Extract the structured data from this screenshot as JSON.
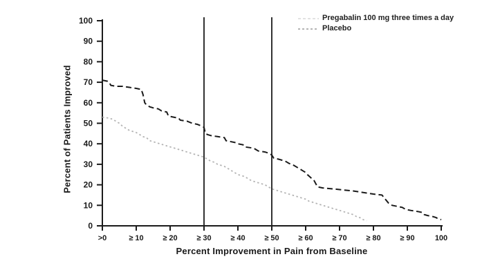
{
  "chart_data": {
    "type": "line",
    "xlabel": "Percent Improvement in Pain from Baseline",
    "ylabel": "Percent of Patients Improved",
    "xlim": [
      0,
      100
    ],
    "ylim": [
      0,
      100
    ],
    "grid": false,
    "legend_position": "top-right",
    "axis_color": "#1a1a1a",
    "text_color": "#1a1a1a",
    "legend_marker_colors": [
      "#e2e2e2",
      "#b3b3b3"
    ],
    "reference_lines_x": [
      30,
      50
    ],
    "y_ticks": [
      0,
      10,
      20,
      30,
      40,
      50,
      60,
      70,
      80,
      90,
      100
    ],
    "x_ticks": [
      {
        "value": 0,
        "label": ">0"
      },
      {
        "value": 10,
        "label": "≥ 10"
      },
      {
        "value": 20,
        "label": "≥ 20"
      },
      {
        "value": 30,
        "label": "≥ 30"
      },
      {
        "value": 40,
        "label": "≥ 40"
      },
      {
        "value": 50,
        "label": "≥ 50"
      },
      {
        "value": 60,
        "label": "≥ 60"
      },
      {
        "value": 70,
        "label": "≥ 70"
      },
      {
        "value": 80,
        "label": "≥ 80"
      },
      {
        "value": 90,
        "label": "≥ 90"
      },
      {
        "value": 100,
        "label": "100"
      }
    ],
    "series": [
      {
        "name": "Pregabalin 100 mg three times a day",
        "style": "dashed",
        "color": "#1a1a1a",
        "points": [
          [
            0,
            71
          ],
          [
            1.5,
            70.5
          ],
          [
            2,
            70
          ],
          [
            2.5,
            68.5
          ],
          [
            4,
            68
          ],
          [
            6,
            68
          ],
          [
            8,
            67.5
          ],
          [
            10,
            67
          ],
          [
            11.5,
            66.5
          ],
          [
            12,
            64
          ],
          [
            12.5,
            60
          ],
          [
            13,
            59
          ],
          [
            14,
            58
          ],
          [
            15,
            57.5
          ],
          [
            16.5,
            57
          ],
          [
            17.5,
            56
          ],
          [
            19,
            55.5
          ],
          [
            19.5,
            53.5
          ],
          [
            21,
            53
          ],
          [
            22.5,
            52.5
          ],
          [
            23,
            51.5
          ],
          [
            25,
            51
          ],
          [
            26.5,
            50
          ],
          [
            28,
            49.5
          ],
          [
            29.5,
            48.5
          ],
          [
            30,
            48
          ],
          [
            30.4,
            45
          ],
          [
            31,
            44.5
          ],
          [
            32,
            44
          ],
          [
            34,
            43.5
          ],
          [
            36,
            43
          ],
          [
            36.5,
            41.5
          ],
          [
            38,
            41
          ],
          [
            39.5,
            40.5
          ],
          [
            40,
            40
          ],
          [
            41.5,
            39.5
          ],
          [
            42,
            38.5
          ],
          [
            44,
            38
          ],
          [
            45,
            37.5
          ],
          [
            46,
            36.5
          ],
          [
            48,
            36
          ],
          [
            49,
            35.5
          ],
          [
            50,
            34.5
          ],
          [
            50.6,
            33
          ],
          [
            52,
            32.5
          ],
          [
            54,
            31.5
          ],
          [
            55,
            30.5
          ],
          [
            56.5,
            29.5
          ],
          [
            58,
            28
          ],
          [
            59,
            27
          ],
          [
            60,
            26
          ],
          [
            60.5,
            25
          ],
          [
            61.5,
            23.5
          ],
          [
            62.5,
            22
          ],
          [
            63,
            20.5
          ],
          [
            63.5,
            19
          ],
          [
            65,
            18.5
          ],
          [
            68,
            18
          ],
          [
            71,
            17.5
          ],
          [
            74,
            17
          ],
          [
            76,
            16.5
          ],
          [
            78,
            16
          ],
          [
            80,
            15.5
          ],
          [
            82.5,
            15
          ],
          [
            83.5,
            13
          ],
          [
            84.5,
            11
          ],
          [
            85.5,
            10
          ],
          [
            87,
            9.5
          ],
          [
            88.5,
            9
          ],
          [
            89.5,
            8
          ],
          [
            91,
            7.5
          ],
          [
            93,
            7
          ],
          [
            94.5,
            6.5
          ],
          [
            95,
            5.5
          ],
          [
            96,
            5
          ],
          [
            97.5,
            4.5
          ],
          [
            98.5,
            4
          ],
          [
            99,
            3.5
          ],
          [
            100,
            3
          ]
        ]
      },
      {
        "name": "Placebo",
        "style": "dotted",
        "color": "#b3b3b3",
        "points": [
          [
            0,
            53
          ],
          [
            2,
            52.5
          ],
          [
            3,
            52
          ],
          [
            4,
            51
          ],
          [
            5,
            50
          ],
          [
            6,
            48.5
          ],
          [
            7,
            47.5
          ],
          [
            8,
            46.5
          ],
          [
            9,
            46
          ],
          [
            10,
            45.5
          ],
          [
            11,
            44.5
          ],
          [
            12,
            43.5
          ],
          [
            13,
            43
          ],
          [
            14,
            41.5
          ],
          [
            15,
            41
          ],
          [
            16,
            40.5
          ],
          [
            17,
            40
          ],
          [
            18,
            39.5
          ],
          [
            20,
            38.5
          ],
          [
            21,
            38
          ],
          [
            22,
            37.5
          ],
          [
            24,
            36.5
          ],
          [
            25,
            36
          ],
          [
            26,
            35.5
          ],
          [
            27,
            35
          ],
          [
            28,
            34.5
          ],
          [
            29,
            34
          ],
          [
            30,
            33.5
          ],
          [
            31,
            32.5
          ],
          [
            32,
            31.5
          ],
          [
            33,
            31
          ],
          [
            34,
            30
          ],
          [
            35,
            29.5
          ],
          [
            36,
            29
          ],
          [
            37,
            28
          ],
          [
            38,
            27
          ],
          [
            39,
            26
          ],
          [
            40,
            25
          ],
          [
            41,
            24.5
          ],
          [
            42,
            24
          ],
          [
            43,
            23
          ],
          [
            44,
            22
          ],
          [
            45,
            21.5
          ],
          [
            46,
            21
          ],
          [
            47,
            20.5
          ],
          [
            48,
            20
          ],
          [
            49,
            19
          ],
          [
            50,
            18
          ],
          [
            51,
            17.5
          ],
          [
            52,
            17
          ],
          [
            53,
            16.5
          ],
          [
            54,
            16
          ],
          [
            55,
            15.5
          ],
          [
            56,
            15
          ],
          [
            57,
            14.5
          ],
          [
            58,
            14
          ],
          [
            59,
            13.5
          ],
          [
            60,
            13
          ],
          [
            61,
            12
          ],
          [
            62,
            11.5
          ],
          [
            63,
            11
          ],
          [
            64,
            10.5
          ],
          [
            65,
            10
          ],
          [
            66,
            9.5
          ],
          [
            67,
            9
          ],
          [
            68,
            8.5
          ],
          [
            69,
            8
          ],
          [
            70,
            7.5
          ],
          [
            71,
            7
          ],
          [
            72,
            6.5
          ],
          [
            73,
            6
          ],
          [
            74,
            5.5
          ],
          [
            75,
            4.5
          ],
          [
            76,
            4
          ],
          [
            77,
            3
          ],
          [
            78,
            2.5
          ]
        ]
      }
    ]
  }
}
